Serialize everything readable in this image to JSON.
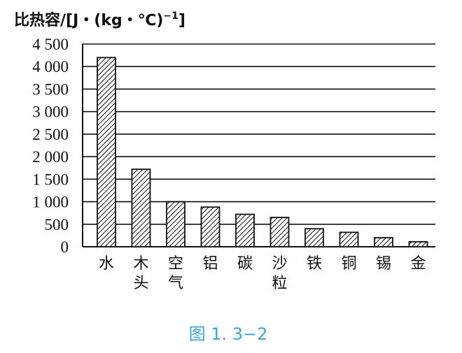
{
  "chart_data": {
    "type": "bar",
    "ylabel_main": "比热容/[J・(kg・℃)",
    "ylabel_sup": "−1",
    "ylabel_close": "]",
    "caption": "图 1. 3−2",
    "ylim": [
      0,
      4500
    ],
    "yticks": [
      0,
      500,
      1000,
      1500,
      2000,
      2500,
      3000,
      3500,
      4000,
      4500
    ],
    "ytick_labels": [
      "0",
      "500",
      "1 000",
      "1 500",
      "2 000",
      "2 500",
      "3 000",
      "3 500",
      "4 000",
      "4 500"
    ],
    "categories": [
      [
        "水"
      ],
      [
        "木",
        "头"
      ],
      [
        "空",
        "气"
      ],
      [
        "铝"
      ],
      [
        "碳"
      ],
      [
        "沙",
        "粒"
      ],
      [
        "铁"
      ],
      [
        "铜"
      ],
      [
        "锡"
      ],
      [
        "金"
      ]
    ],
    "values": [
      4200,
      1720,
      1000,
      880,
      720,
      650,
      400,
      320,
      200,
      110
    ],
    "grid": true,
    "bar_fill": "hatched",
    "colors": {
      "axis": "#111111",
      "hatch": "#111111",
      "caption": "#3aa7d6"
    }
  }
}
